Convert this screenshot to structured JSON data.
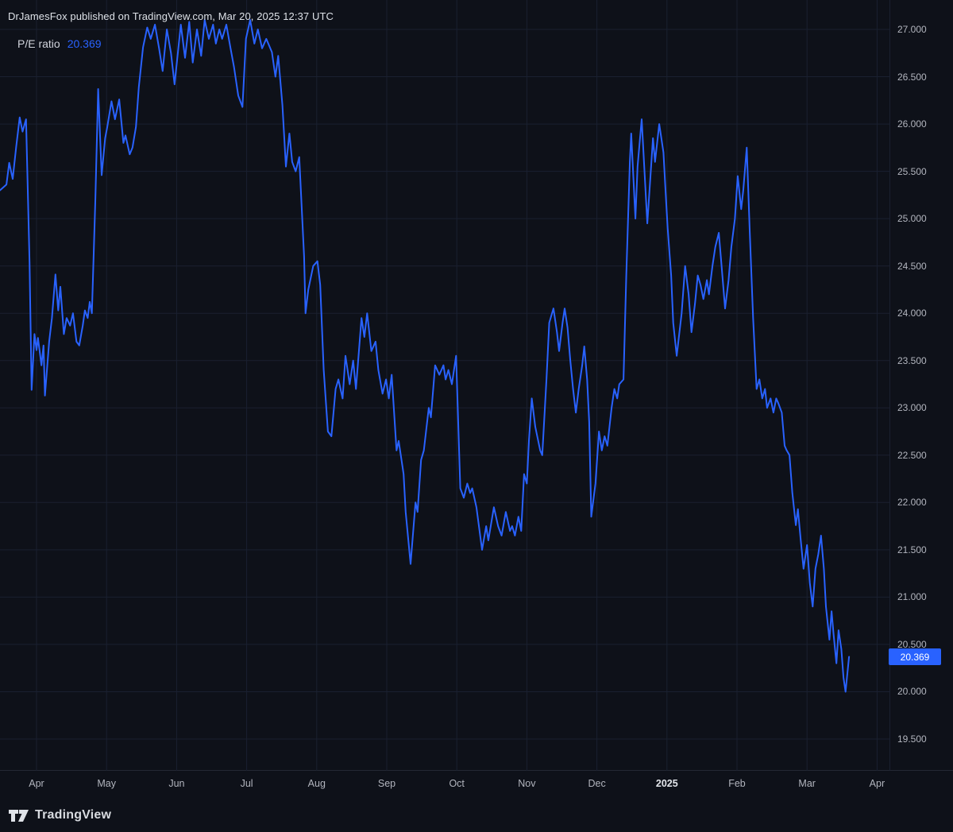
{
  "header": {
    "attribution": "DrJamesFox published on TradingView.com, Mar 20, 2025 12:37 UTC"
  },
  "legend": {
    "label": "P/E ratio",
    "value": "20.369"
  },
  "footer": {
    "brand": "TradingView"
  },
  "colors": {
    "background": "#0e1119",
    "grid": "#1a2030",
    "line": "#2962ff",
    "axis_text": "#b2b5be",
    "tag_bg": "#2962ff",
    "tag_text": "#ffffff"
  },
  "chart_data": {
    "type": "line",
    "title": "P/E ratio",
    "series_name": "P/E ratio",
    "last_value": 20.369,
    "last_value_label": "20.369",
    "x_unit": "months since 2024-04-01",
    "ylim": [
      19.5,
      27.0
    ],
    "grid": true,
    "legend_position": "top-left",
    "x_ticks": [
      {
        "label": "Apr"
      },
      {
        "label": "May"
      },
      {
        "label": "Jun"
      },
      {
        "label": "Jul"
      },
      {
        "label": "Aug"
      },
      {
        "label": "Sep"
      },
      {
        "label": "Oct"
      },
      {
        "label": "Nov"
      },
      {
        "label": "Dec"
      },
      {
        "label": "2025",
        "emphasis": true
      },
      {
        "label": "Feb"
      },
      {
        "label": "Mar"
      },
      {
        "label": "Apr"
      }
    ],
    "y_ticks": [
      "27.000",
      "26.500",
      "26.000",
      "25.500",
      "25.000",
      "24.500",
      "24.000",
      "23.500",
      "23.000",
      "22.500",
      "22.000",
      "21.500",
      "21.000",
      "20.500",
      "20.000",
      "19.500"
    ],
    "points": [
      [
        -0.52,
        25.3
      ],
      [
        -0.43,
        25.36
      ],
      [
        -0.39,
        25.59
      ],
      [
        -0.34,
        25.42
      ],
      [
        -0.29,
        25.76
      ],
      [
        -0.24,
        26.07
      ],
      [
        -0.2,
        25.92
      ],
      [
        -0.15,
        26.05
      ],
      [
        -0.1,
        24.54
      ],
      [
        -0.07,
        23.19
      ],
      [
        -0.03,
        23.78
      ],
      [
        0.0,
        23.61
      ],
      [
        0.02,
        23.74
      ],
      [
        0.07,
        23.45
      ],
      [
        0.1,
        23.66
      ],
      [
        0.12,
        23.13
      ],
      [
        0.18,
        23.7
      ],
      [
        0.22,
        23.95
      ],
      [
        0.27,
        24.41
      ],
      [
        0.31,
        24.03
      ],
      [
        0.34,
        24.28
      ],
      [
        0.39,
        23.78
      ],
      [
        0.43,
        23.95
      ],
      [
        0.48,
        23.87
      ],
      [
        0.52,
        24.0
      ],
      [
        0.57,
        23.7
      ],
      [
        0.61,
        23.66
      ],
      [
        0.66,
        23.87
      ],
      [
        0.69,
        24.03
      ],
      [
        0.73,
        23.95
      ],
      [
        0.76,
        24.12
      ],
      [
        0.79,
        24.0
      ],
      [
        0.84,
        25.21
      ],
      [
        0.88,
        26.37
      ],
      [
        0.93,
        25.46
      ],
      [
        0.98,
        25.85
      ],
      [
        1.01,
        25.97
      ],
      [
        1.07,
        26.24
      ],
      [
        1.12,
        26.05
      ],
      [
        1.18,
        26.26
      ],
      [
        1.24,
        25.8
      ],
      [
        1.27,
        25.88
      ],
      [
        1.33,
        25.68
      ],
      [
        1.37,
        25.75
      ],
      [
        1.42,
        25.97
      ],
      [
        1.46,
        26.39
      ],
      [
        1.52,
        26.81
      ],
      [
        1.58,
        27.02
      ],
      [
        1.63,
        26.9
      ],
      [
        1.69,
        27.05
      ],
      [
        1.75,
        26.8
      ],
      [
        1.8,
        26.56
      ],
      [
        1.86,
        27.0
      ],
      [
        1.92,
        26.75
      ],
      [
        1.97,
        26.42
      ],
      [
        2.06,
        27.05
      ],
      [
        2.12,
        26.7
      ],
      [
        2.18,
        27.08
      ],
      [
        2.23,
        26.65
      ],
      [
        2.29,
        27.0
      ],
      [
        2.35,
        26.72
      ],
      [
        2.4,
        27.1
      ],
      [
        2.46,
        26.9
      ],
      [
        2.52,
        27.05
      ],
      [
        2.56,
        26.85
      ],
      [
        2.61,
        27.0
      ],
      [
        2.65,
        26.9
      ],
      [
        2.71,
        27.05
      ],
      [
        2.77,
        26.8
      ],
      [
        2.82,
        26.6
      ],
      [
        2.88,
        26.3
      ],
      [
        2.94,
        26.18
      ],
      [
        2.99,
        26.9
      ],
      [
        3.05,
        27.1
      ],
      [
        3.11,
        26.85
      ],
      [
        3.16,
        27.0
      ],
      [
        3.22,
        26.8
      ],
      [
        3.28,
        26.9
      ],
      [
        3.36,
        26.76
      ],
      [
        3.41,
        26.5
      ],
      [
        3.45,
        26.72
      ],
      [
        3.51,
        26.2
      ],
      [
        3.56,
        25.55
      ],
      [
        3.61,
        25.9
      ],
      [
        3.65,
        25.6
      ],
      [
        3.7,
        25.5
      ],
      [
        3.75,
        25.65
      ],
      [
        3.82,
        24.6
      ],
      [
        3.84,
        24.0
      ],
      [
        3.88,
        24.25
      ],
      [
        3.95,
        24.5
      ],
      [
        4.01,
        24.55
      ],
      [
        4.05,
        24.3
      ],
      [
        4.1,
        23.4
      ],
      [
        4.16,
        22.75
      ],
      [
        4.21,
        22.7
      ],
      [
        4.27,
        23.2
      ],
      [
        4.31,
        23.3
      ],
      [
        4.37,
        23.1
      ],
      [
        4.41,
        23.55
      ],
      [
        4.47,
        23.25
      ],
      [
        4.52,
        23.5
      ],
      [
        4.56,
        23.2
      ],
      [
        4.64,
        23.95
      ],
      [
        4.68,
        23.75
      ],
      [
        4.72,
        24.0
      ],
      [
        4.78,
        23.6
      ],
      [
        4.84,
        23.7
      ],
      [
        4.88,
        23.4
      ],
      [
        4.94,
        23.15
      ],
      [
        4.99,
        23.3
      ],
      [
        5.03,
        23.1
      ],
      [
        5.07,
        23.35
      ],
      [
        5.14,
        22.55
      ],
      [
        5.17,
        22.65
      ],
      [
        5.24,
        22.3
      ],
      [
        5.27,
        21.9
      ],
      [
        5.34,
        21.35
      ],
      [
        5.41,
        22.0
      ],
      [
        5.44,
        21.9
      ],
      [
        5.49,
        22.45
      ],
      [
        5.53,
        22.55
      ],
      [
        5.6,
        23.0
      ],
      [
        5.63,
        22.9
      ],
      [
        5.69,
        23.45
      ],
      [
        5.75,
        23.35
      ],
      [
        5.81,
        23.45
      ],
      [
        5.84,
        23.3
      ],
      [
        5.88,
        23.4
      ],
      [
        5.93,
        23.25
      ],
      [
        5.99,
        23.55
      ],
      [
        6.05,
        22.15
      ],
      [
        6.1,
        22.05
      ],
      [
        6.15,
        22.2
      ],
      [
        6.19,
        22.1
      ],
      [
        6.22,
        22.15
      ],
      [
        6.28,
        21.95
      ],
      [
        6.36,
        21.5
      ],
      [
        6.42,
        21.75
      ],
      [
        6.45,
        21.6
      ],
      [
        6.53,
        21.95
      ],
      [
        6.59,
        21.75
      ],
      [
        6.64,
        21.65
      ],
      [
        6.7,
        21.9
      ],
      [
        6.76,
        21.7
      ],
      [
        6.79,
        21.75
      ],
      [
        6.83,
        21.65
      ],
      [
        6.88,
        21.85
      ],
      [
        6.92,
        21.7
      ],
      [
        6.96,
        22.3
      ],
      [
        7.0,
        22.2
      ],
      [
        7.03,
        22.65
      ],
      [
        7.07,
        23.1
      ],
      [
        7.12,
        22.8
      ],
      [
        7.19,
        22.55
      ],
      [
        7.22,
        22.5
      ],
      [
        7.28,
        23.3
      ],
      [
        7.32,
        23.9
      ],
      [
        7.38,
        24.05
      ],
      [
        7.43,
        23.8
      ],
      [
        7.46,
        23.6
      ],
      [
        7.51,
        23.9
      ],
      [
        7.54,
        24.05
      ],
      [
        7.58,
        23.85
      ],
      [
        7.62,
        23.5
      ],
      [
        7.66,
        23.2
      ],
      [
        7.7,
        22.95
      ],
      [
        7.74,
        23.2
      ],
      [
        7.79,
        23.45
      ],
      [
        7.82,
        23.65
      ],
      [
        7.86,
        23.3
      ],
      [
        7.89,
        22.85
      ],
      [
        7.92,
        21.85
      ],
      [
        7.98,
        22.2
      ],
      [
        8.03,
        22.75
      ],
      [
        8.07,
        22.55
      ],
      [
        8.11,
        22.7
      ],
      [
        8.15,
        22.6
      ],
      [
        8.21,
        23.0
      ],
      [
        8.25,
        23.2
      ],
      [
        8.29,
        23.1
      ],
      [
        8.32,
        23.25
      ],
      [
        8.38,
        23.3
      ],
      [
        8.42,
        24.4
      ],
      [
        8.47,
        25.6
      ],
      [
        8.49,
        25.9
      ],
      [
        8.55,
        25.0
      ],
      [
        8.58,
        25.55
      ],
      [
        8.64,
        26.05
      ],
      [
        8.69,
        25.35
      ],
      [
        8.72,
        24.95
      ],
      [
        8.8,
        25.85
      ],
      [
        8.83,
        25.6
      ],
      [
        8.89,
        26.0
      ],
      [
        8.95,
        25.7
      ],
      [
        8.98,
        25.3
      ],
      [
        9.01,
        24.9
      ],
      [
        9.06,
        24.4
      ],
      [
        9.09,
        23.9
      ],
      [
        9.14,
        23.55
      ],
      [
        9.21,
        24.0
      ],
      [
        9.26,
        24.5
      ],
      [
        9.31,
        24.2
      ],
      [
        9.35,
        23.8
      ],
      [
        9.4,
        24.1
      ],
      [
        9.44,
        24.4
      ],
      [
        9.48,
        24.3
      ],
      [
        9.52,
        24.15
      ],
      [
        9.57,
        24.35
      ],
      [
        9.6,
        24.2
      ],
      [
        9.65,
        24.5
      ],
      [
        9.69,
        24.7
      ],
      [
        9.74,
        24.85
      ],
      [
        9.78,
        24.5
      ],
      [
        9.83,
        24.05
      ],
      [
        9.88,
        24.35
      ],
      [
        9.92,
        24.7
      ],
      [
        9.97,
        25.0
      ],
      [
        10.01,
        25.45
      ],
      [
        10.06,
        25.1
      ],
      [
        10.09,
        25.3
      ],
      [
        10.14,
        25.75
      ],
      [
        10.18,
        24.9
      ],
      [
        10.23,
        23.95
      ],
      [
        10.28,
        23.2
      ],
      [
        10.32,
        23.3
      ],
      [
        10.36,
        23.1
      ],
      [
        10.4,
        23.2
      ],
      [
        10.43,
        23.0
      ],
      [
        10.48,
        23.1
      ],
      [
        10.52,
        22.95
      ],
      [
        10.56,
        23.1
      ],
      [
        10.59,
        23.05
      ],
      [
        10.64,
        22.95
      ],
      [
        10.68,
        22.6
      ],
      [
        10.71,
        22.55
      ],
      [
        10.75,
        22.5
      ],
      [
        10.79,
        22.1
      ],
      [
        10.84,
        21.76
      ],
      [
        10.87,
        21.93
      ],
      [
        10.91,
        21.6
      ],
      [
        10.95,
        21.3
      ],
      [
        11.0,
        21.55
      ],
      [
        11.04,
        21.15
      ],
      [
        11.08,
        20.9
      ],
      [
        11.12,
        21.3
      ],
      [
        11.16,
        21.45
      ],
      [
        11.2,
        21.65
      ],
      [
        11.24,
        21.3
      ],
      [
        11.27,
        20.9
      ],
      [
        11.32,
        20.55
      ],
      [
        11.35,
        20.85
      ],
      [
        11.38,
        20.6
      ],
      [
        11.42,
        20.3
      ],
      [
        11.45,
        20.65
      ],
      [
        11.49,
        20.45
      ],
      [
        11.52,
        20.15
      ],
      [
        11.55,
        20.0
      ],
      [
        11.6,
        20.369
      ]
    ]
  }
}
